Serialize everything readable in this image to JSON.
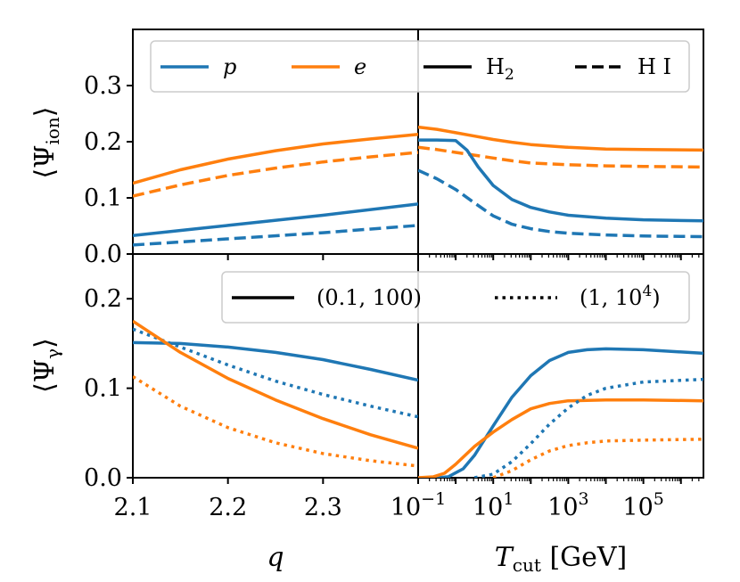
{
  "chart_data": [
    {
      "type": "line",
      "panel": "top-left",
      "xlabel": "",
      "ylabel": "⟨Ψ_ion⟩",
      "xlim": [
        2.1,
        2.4
      ],
      "ylim": [
        0.0,
        0.4
      ],
      "xticks": [
        2.1,
        2.2,
        2.3
      ],
      "xtick_labels": [
        "",
        "",
        ""
      ],
      "yticks": [
        0.0,
        0.1,
        0.2,
        0.3
      ],
      "ytick_labels": [
        "0.0",
        "0.1",
        "0.2",
        "0.3"
      ],
      "series": [
        {
          "name": "e, H I",
          "color": "#ff7f0e",
          "dash": "dashed",
          "x": [
            2.1,
            2.15,
            2.2,
            2.25,
            2.3,
            2.35,
            2.4
          ],
          "y": [
            0.103,
            0.123,
            0.14,
            0.153,
            0.164,
            0.173,
            0.181
          ]
        },
        {
          "name": "e, H2",
          "color": "#ff7f0e",
          "dash": "solid",
          "x": [
            2.1,
            2.15,
            2.2,
            2.25,
            2.3,
            2.35,
            2.4
          ],
          "y": [
            0.126,
            0.15,
            0.169,
            0.184,
            0.196,
            0.205,
            0.213
          ]
        },
        {
          "name": "p, H I",
          "color": "#1f77b4",
          "dash": "dashed",
          "x": [
            2.1,
            2.2,
            2.3,
            2.4
          ],
          "y": [
            0.016,
            0.027,
            0.038,
            0.051
          ]
        },
        {
          "name": "p, H2",
          "color": "#1f77b4",
          "dash": "solid",
          "x": [
            2.1,
            2.2,
            2.3,
            2.4
          ],
          "y": [
            0.033,
            0.051,
            0.069,
            0.089
          ]
        }
      ]
    },
    {
      "type": "line",
      "panel": "top-right",
      "xscale": "log",
      "xlabel": "",
      "ylabel": "",
      "xlim": [
        -1,
        6.6
      ],
      "ylim": [
        0.0,
        0.4
      ],
      "series": [
        {
          "name": "e, H2",
          "color": "#ff7f0e",
          "dash": "solid",
          "x": [
            -1,
            -0.5,
            0,
            0.5,
            1,
            1.5,
            2,
            3,
            4,
            5,
            6.6
          ],
          "y": [
            0.226,
            0.222,
            0.216,
            0.21,
            0.204,
            0.199,
            0.195,
            0.19,
            0.187,
            0.186,
            0.185
          ]
        },
        {
          "name": "e, H I",
          "color": "#ff7f0e",
          "dash": "dashed",
          "x": [
            -1,
            -0.5,
            0,
            0.5,
            1,
            1.5,
            2,
            3,
            4,
            5,
            6.6
          ],
          "y": [
            0.19,
            0.186,
            0.181,
            0.176,
            0.171,
            0.166,
            0.162,
            0.159,
            0.157,
            0.156,
            0.155
          ]
        },
        {
          "name": "p, H2",
          "color": "#1f77b4",
          "dash": "solid",
          "x": [
            -1,
            -0.5,
            0,
            0.3,
            0.6,
            1,
            1.5,
            2,
            2.5,
            3,
            4,
            5,
            6.6
          ],
          "y": [
            0.203,
            0.203,
            0.202,
            0.185,
            0.155,
            0.122,
            0.097,
            0.083,
            0.075,
            0.069,
            0.064,
            0.061,
            0.059
          ]
        },
        {
          "name": "p, H I",
          "color": "#1f77b4",
          "dash": "dashed",
          "x": [
            -1,
            -0.5,
            0,
            0.5,
            1,
            1.5,
            2,
            2.5,
            3,
            4,
            5,
            6.6
          ],
          "y": [
            0.149,
            0.134,
            0.115,
            0.091,
            0.068,
            0.053,
            0.045,
            0.04,
            0.037,
            0.034,
            0.032,
            0.031
          ]
        }
      ]
    },
    {
      "type": "line",
      "panel": "bottom-left",
      "xlabel": "q",
      "ylabel": "⟨Ψ_γ⟩",
      "xlim": [
        2.1,
        2.4
      ],
      "ylim": [
        0.0,
        0.25
      ],
      "xticks": [
        2.1,
        2.2,
        2.3
      ],
      "xtick_labels": [
        "2.1",
        "2.2",
        "2.3"
      ],
      "yticks": [
        0.0,
        0.1,
        0.2
      ],
      "ytick_labels": [
        "0.0",
        "0.1",
        "0.2"
      ],
      "series": [
        {
          "name": "p, (0.1, 100)",
          "color": "#1f77b4",
          "dash": "solid",
          "x": [
            2.1,
            2.15,
            2.2,
            2.25,
            2.3,
            2.35,
            2.4
          ],
          "y": [
            0.151,
            0.15,
            0.146,
            0.14,
            0.132,
            0.121,
            0.109
          ]
        },
        {
          "name": "p, (1, 10^4)",
          "color": "#1f77b4",
          "dash": "dotted",
          "x": [
            2.1,
            2.15,
            2.2,
            2.25,
            2.3,
            2.35,
            2.4
          ],
          "y": [
            0.166,
            0.146,
            0.126,
            0.108,
            0.093,
            0.08,
            0.068
          ]
        },
        {
          "name": "e, (0.1, 100)",
          "color": "#ff7f0e",
          "dash": "solid",
          "x": [
            2.1,
            2.15,
            2.2,
            2.25,
            2.3,
            2.35,
            2.4
          ],
          "y": [
            0.175,
            0.14,
            0.111,
            0.087,
            0.066,
            0.048,
            0.033
          ]
        },
        {
          "name": "e, (1, 10^4)",
          "color": "#ff7f0e",
          "dash": "dotted",
          "x": [
            2.1,
            2.15,
            2.2,
            2.25,
            2.3,
            2.35,
            2.4
          ],
          "y": [
            0.113,
            0.08,
            0.056,
            0.039,
            0.027,
            0.019,
            0.013
          ]
        }
      ]
    },
    {
      "type": "line",
      "panel": "bottom-right",
      "xscale": "log",
      "xlabel": "T_cut [GeV]",
      "ylabel": "",
      "xlim": [
        -1,
        6.6
      ],
      "ylim": [
        0.0,
        0.25
      ],
      "xticks": [
        -1,
        1,
        3,
        5
      ],
      "xtick_labels": [
        "10−1",
        "101",
        "103",
        "105"
      ],
      "series": [
        {
          "name": "p, (0.1, 100)",
          "color": "#1f77b4",
          "dash": "solid",
          "x": [
            -1,
            -0.5,
            -0.2,
            0.2,
            0.5,
            1,
            1.5,
            2,
            2.5,
            3,
            3.5,
            4,
            5,
            6.6
          ],
          "y": [
            0.0,
            0.0,
            0.001,
            0.01,
            0.025,
            0.058,
            0.09,
            0.114,
            0.131,
            0.14,
            0.143,
            0.144,
            0.143,
            0.139
          ]
        },
        {
          "name": "e, (0.1, 100)",
          "color": "#ff7f0e",
          "dash": "solid",
          "x": [
            -1,
            -0.6,
            -0.3,
            0,
            0.5,
            1,
            1.5,
            2,
            2.5,
            3,
            4,
            5,
            6.6
          ],
          "y": [
            0.0,
            0.001,
            0.005,
            0.015,
            0.035,
            0.051,
            0.065,
            0.077,
            0.083,
            0.086,
            0.087,
            0.087,
            0.086
          ]
        },
        {
          "name": "p, (1, 10^4)",
          "color": "#1f77b4",
          "dash": "dotted",
          "x": [
            0.5,
            1,
            1.5,
            2,
            2.5,
            3,
            3.5,
            4,
            5,
            6.6
          ],
          "y": [
            0.0,
            0.004,
            0.018,
            0.038,
            0.06,
            0.078,
            0.092,
            0.1,
            0.107,
            0.11
          ]
        },
        {
          "name": "e, (1, 10^4)",
          "color": "#ff7f0e",
          "dash": "dotted",
          "x": [
            1,
            1.5,
            2,
            2.5,
            3,
            3.5,
            4,
            5,
            6.6
          ],
          "y": [
            0.0,
            0.008,
            0.02,
            0.03,
            0.036,
            0.039,
            0.041,
            0.042,
            0.043
          ]
        }
      ]
    }
  ],
  "legend_top": {
    "p_label": "p",
    "e_label": "e",
    "h2_label_main": "H",
    "h2_label_sub": "2",
    "hi_label": "H I"
  },
  "legend_bottom": {
    "solid_label": "(0.1, 100)",
    "dotted_label_prefix": "(1, 10",
    "dotted_label_sup": "4",
    "dotted_label_suffix": ")"
  },
  "labels": {
    "ylabel_top_main": "⟨Ψ",
    "ylabel_top_sub": "ion",
    "ylabel_top_close": "⟩",
    "ylabel_bottom_main": "⟨Ψ",
    "ylabel_bottom_sub": "γ",
    "ylabel_bottom_close": "⟩",
    "xlabel_left": "q",
    "xlabel_right_main": "T",
    "xlabel_right_sub": "cut",
    "xlabel_right_unit": " [GeV]",
    "log_tick_base": "10",
    "log_tick_exps": [
      "−1",
      "1",
      "3",
      "5"
    ]
  },
  "colors": {
    "blue": "#1f77b4",
    "orange": "#ff7f0e"
  }
}
